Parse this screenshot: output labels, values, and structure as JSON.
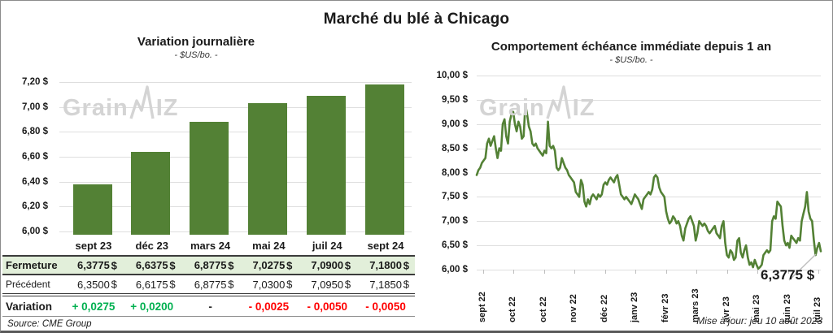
{
  "page": {
    "title": "Marché du blé à Chicago",
    "updated": "Mise à jour: jeu 10 août 2023",
    "watermark": {
      "prefix": "Grain",
      "suffix": "IZ"
    }
  },
  "colors": {
    "green": "#538135",
    "row_highlight": "#e2efda",
    "positive": "#00b050",
    "negative": "#ff0000",
    "neutral": "#262626"
  },
  "chart_data": [
    {
      "type": "bar",
      "title": "Variation journalière",
      "subtitle": "- $US/bo. -",
      "categories": [
        "sept 23",
        "déc 23",
        "mars 24",
        "mai 24",
        "juil 24",
        "sept 24"
      ],
      "values": [
        6.3775,
        6.6375,
        6.8775,
        7.0275,
        7.09,
        7.18
      ],
      "ylim": [
        6.0,
        7.2
      ],
      "yticks": [
        {
          "value": 7.2,
          "label": "7,20 $"
        },
        {
          "value": 7.0,
          "label": "7,00 $"
        },
        {
          "value": 6.8,
          "label": "6,80 $"
        },
        {
          "value": 6.6,
          "label": "6,60 $"
        },
        {
          "value": 6.4,
          "label": "6,40 $"
        },
        {
          "value": 6.2,
          "label": "6,20 $"
        },
        {
          "value": 6.0,
          "label": "6,00 $"
        }
      ],
      "bar_color": "#538135",
      "grid": true,
      "legend": "none"
    },
    {
      "type": "line",
      "title": "Comportement échéance immédiate depuis 1 an",
      "subtitle": "- $US/bo. -",
      "ylim": [
        6.0,
        10.0
      ],
      "yticks": [
        {
          "value": 10.0,
          "label": "10,00 $"
        },
        {
          "value": 9.5,
          "label": "9,50 $"
        },
        {
          "value": 9.0,
          "label": "9,00 $"
        },
        {
          "value": 8.5,
          "label": "8,50 $"
        },
        {
          "value": 8.0,
          "label": "8,00 $"
        },
        {
          "value": 7.5,
          "label": "7,50 $"
        },
        {
          "value": 7.0,
          "label": "7,00 $"
        },
        {
          "value": 6.5,
          "label": "6,50 $"
        },
        {
          "value": 6.0,
          "label": "6,00 $"
        }
      ],
      "xlabels": [
        "sept 22",
        "oct 22",
        "oct 22",
        "nov 22",
        "déc 22",
        "janv 23",
        "févr 23",
        "mars 23",
        "avr 23",
        "mai 23",
        "juin 23",
        "juil 23"
      ],
      "last_value": 6.3775,
      "last_value_label": "6,3775 $",
      "line_color": "#538135",
      "grid": true,
      "legend": "none",
      "values": [
        7.95,
        8.05,
        8.1,
        8.2,
        8.25,
        8.3,
        8.6,
        8.7,
        8.55,
        8.65,
        8.75,
        8.5,
        8.3,
        8.5,
        8.45,
        9.0,
        9.1,
        8.75,
        8.6,
        9.05,
        9.2,
        9.25,
        9.0,
        8.85,
        9.05,
        8.95,
        8.7,
        8.75,
        9.4,
        9.2,
        8.95,
        8.85,
        8.6,
        8.55,
        8.6,
        8.5,
        8.45,
        8.4,
        8.35,
        8.45,
        8.4,
        9.05,
        8.55,
        8.5,
        8.55,
        8.45,
        8.1,
        8.05,
        8.1,
        8.3,
        8.2,
        8.1,
        8.05,
        7.95,
        7.9,
        7.85,
        7.8,
        7.6,
        7.55,
        7.5,
        7.85,
        7.75,
        7.4,
        7.3,
        7.45,
        7.35,
        7.5,
        7.55,
        7.5,
        7.45,
        7.55,
        7.5,
        7.55,
        7.75,
        7.8,
        7.75,
        7.85,
        7.9,
        7.85,
        7.8,
        7.9,
        7.95,
        7.75,
        7.55,
        7.5,
        7.45,
        7.5,
        7.45,
        7.4,
        7.35,
        7.45,
        7.55,
        7.5,
        7.45,
        7.35,
        7.25,
        7.45,
        7.5,
        7.55,
        7.6,
        7.55,
        7.65,
        7.9,
        7.95,
        7.9,
        7.7,
        7.6,
        7.55,
        7.5,
        7.2,
        7.05,
        6.95,
        7.0,
        7.1,
        7.05,
        6.95,
        7.0,
        6.9,
        6.7,
        6.6,
        6.85,
        6.95,
        7.05,
        7.1,
        7.0,
        6.9,
        6.6,
        6.75,
        7.0,
        6.95,
        6.9,
        6.95,
        6.9,
        6.8,
        6.75,
        6.8,
        6.85,
        6.9,
        6.75,
        6.7,
        6.65,
        6.9,
        7.0,
        6.55,
        6.3,
        6.25,
        6.4,
        6.35,
        6.2,
        6.25,
        6.6,
        6.65,
        6.35,
        6.25,
        6.4,
        6.5,
        6.25,
        6.1,
        6.15,
        6.05,
        6.2,
        6.1,
        6.02,
        6.05,
        6.1,
        6.3,
        6.35,
        6.4,
        6.35,
        6.4,
        7.0,
        7.1,
        7.05,
        7.4,
        7.35,
        7.3,
        6.9,
        6.6,
        6.5,
        6.55,
        6.45,
        6.7,
        6.65,
        6.6,
        6.55,
        6.65,
        6.6,
        7.0,
        7.15,
        7.3,
        7.6,
        7.2,
        7.05,
        7.0,
        6.6,
        6.3,
        6.45,
        6.55,
        6.3775
      ]
    },
    {
      "type": "table",
      "columns": [
        "sept 23",
        "déc 23",
        "mars 24",
        "mai 24",
        "juil 24",
        "sept 24"
      ],
      "rows": [
        {
          "label": "Fermeture",
          "style": "close",
          "currency": "$",
          "values": [
            "6,3775",
            "6,6375",
            "6,8775",
            "7,0275",
            "7,0900",
            "7,1800"
          ]
        },
        {
          "label": "Précédent",
          "style": "prev",
          "currency": "$",
          "values": [
            "6,3500",
            "6,6175",
            "6,8775",
            "7,0300",
            "7,0950",
            "7,1850"
          ]
        },
        {
          "label": "Variation",
          "style": "var",
          "values": [
            "+ 0,0275",
            "+ 0,0200",
            "-",
            "- 0,0025",
            "- 0,0050",
            "- 0,0050"
          ],
          "value_colors": [
            "#00b050",
            "#00b050",
            "#262626",
            "#ff0000",
            "#ff0000",
            "#ff0000"
          ]
        }
      ],
      "source": "Source: CME Group"
    }
  ]
}
